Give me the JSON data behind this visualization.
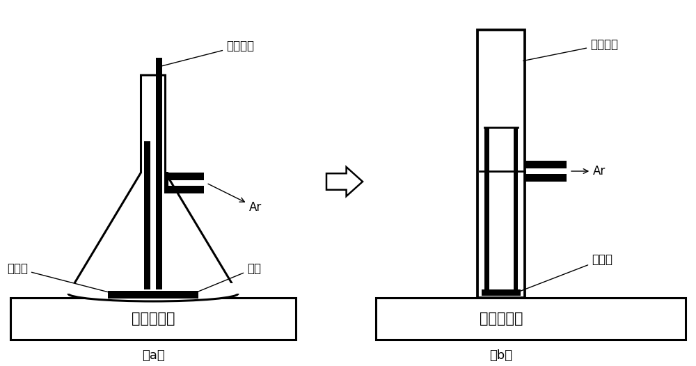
{
  "bg_color": "#ffffff",
  "line_color": "#000000",
  "label_a": "（a）",
  "label_b": "（b）",
  "text_magnetic_a": "磁力搅拌器",
  "text_magnetic_b": "磁力搅拌器",
  "text_focused_laser": "聚焦激光",
  "text_parallel_laser": "平行激光",
  "text_ar_a": "Ar",
  "text_ar_b": "Ar",
  "text_stir_a": "搅拌子",
  "text_stir_b": "搅拌子",
  "text_target": "靶材"
}
